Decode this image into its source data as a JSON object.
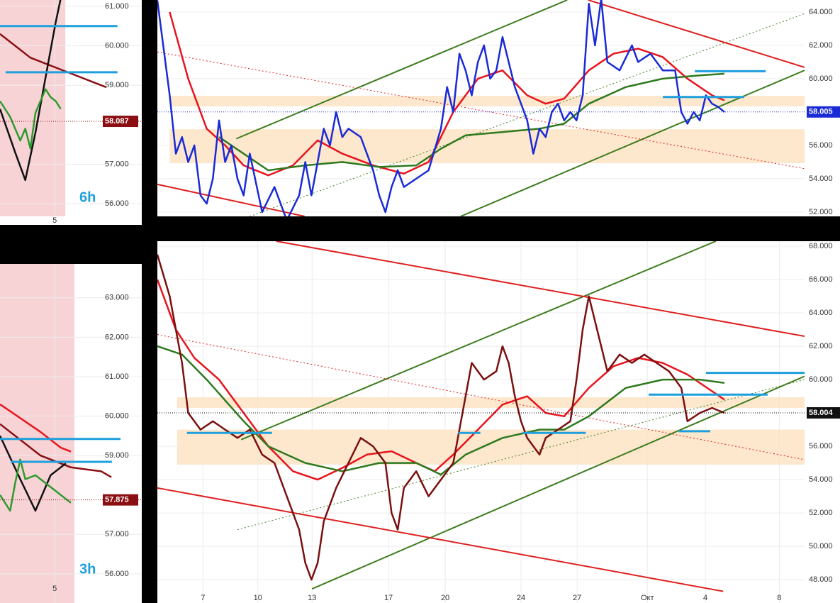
{
  "chart_data": [
    {
      "type": "line",
      "timeframe": "6h",
      "grid": true,
      "xlim": [
        0,
        28
      ],
      "xticks": [
        {
          "value": 10.8,
          "label": "5"
        }
      ],
      "ylim": [
        55.68,
        61.16
      ],
      "yticks": [
        {
          "value": 61,
          "label": "61.000"
        },
        {
          "value": 60,
          "label": "60.000"
        },
        {
          "value": 59,
          "label": "59.000"
        },
        {
          "value": 57,
          "label": "57.000"
        },
        {
          "value": 56,
          "label": "56.000"
        }
      ],
      "shade_x": [
        0,
        12.9
      ],
      "shade_color": "#f8d3d6",
      "series": [
        {
          "color": "#8b0f12",
          "x": [
            0,
            6,
            12,
            18,
            21
          ],
          "values": [
            60.3,
            59.7,
            59.4,
            59.1,
            58.95
          ]
        },
        {
          "color": "#111111",
          "x": [
            0,
            3,
            5,
            7,
            9,
            11,
            12
          ],
          "values": [
            58.4,
            57.3,
            56.6,
            57.8,
            59.2,
            60.6,
            61.2
          ]
        },
        {
          "color": "#2e9a2e",
          "x": [
            0,
            2,
            4,
            5,
            6,
            7,
            8,
            9,
            10,
            11,
            12
          ],
          "values": [
            58.6,
            58.2,
            57.6,
            57.9,
            57.4,
            58.3,
            58.6,
            58.9,
            58.7,
            58.6,
            58.4
          ]
        }
      ],
      "levels": [
        {
          "value": 60.5,
          "x": [
            0,
            23.2
          ]
        },
        {
          "value": 59.33,
          "x": [
            1.1,
            23.2
          ]
        }
      ],
      "level_color": "#1ea0dc",
      "last_price": {
        "value": 58.087,
        "label": "58.087"
      },
      "tag_color": "#8b0f12"
    },
    {
      "type": "line",
      "grid": true,
      "xlim": [
        0,
        105
      ],
      "xticks": [],
      "ylim": [
        51.74,
        64.72
      ],
      "yticks": [
        {
          "value": 64,
          "label": "64.000"
        },
        {
          "value": 62,
          "label": "62.000"
        },
        {
          "value": 60,
          "label": "60.000"
        },
        {
          "value": 56,
          "label": "56.000"
        },
        {
          "value": 54,
          "label": "54.000"
        },
        {
          "value": 52,
          "label": "52.000"
        }
      ],
      "zones": [
        [
          58.34,
          58.97
        ],
        [
          54.93,
          56.97
        ]
      ],
      "zone_x": [
        2,
        105
      ],
      "zone_color": "#fde3c4",
      "trend_lines": [
        {
          "color": "#3f7d20",
          "x": [
            12.8,
            66.5
          ],
          "values": [
            56.4,
            64.72
          ],
          "dash": false
        },
        {
          "color": "#3f7d20",
          "x": [
            49.2,
            105
          ],
          "values": [
            51.74,
            60.5
          ],
          "dash": false
        },
        {
          "color": "#e02020",
          "x": [
            69.9,
            105
          ],
          "values": [
            64.72,
            60.68
          ],
          "dash": false
        },
        {
          "color": "#e02020",
          "x": [
            0,
            23.9
          ],
          "values": [
            53.66,
            51.74
          ],
          "dash": false
        },
        {
          "color": "#e02020",
          "x": [
            0,
            105
          ],
          "values": [
            61.6,
            54.6
          ],
          "dash": true
        },
        {
          "color": "#3f7d20",
          "x": [
            15,
            105
          ],
          "values": [
            51.74,
            63.9
          ],
          "dash": true
        }
      ],
      "series": [
        {
          "color": "#e8141e",
          "x": [
            2,
            5,
            8,
            11,
            14,
            18,
            22,
            26,
            30,
            35,
            40,
            44,
            48,
            52,
            56,
            60,
            63,
            66,
            70,
            74,
            78,
            82,
            86,
            90,
            92
          ],
          "values": [
            64,
            60,
            57,
            56,
            54.8,
            54.2,
            54.8,
            56.3,
            55.5,
            54.8,
            54.3,
            55,
            58,
            60,
            60.5,
            59,
            58.5,
            58.8,
            60.5,
            61.5,
            61.8,
            61.3,
            60,
            59,
            58.7
          ]
        },
        {
          "color": "#2f7a1e",
          "x": [
            10,
            18,
            24,
            30,
            36,
            42,
            46,
            50,
            56,
            62,
            66,
            70,
            76,
            82,
            88,
            92
          ],
          "values": [
            56.5,
            54.5,
            54.8,
            55,
            54.7,
            54.8,
            55.8,
            56.6,
            56.8,
            57,
            57.3,
            58.5,
            59.5,
            60,
            60.2,
            60.3
          ]
        },
        {
          "color": "#1a2bd6",
          "x": [
            0,
            2,
            3,
            4,
            5,
            6,
            7,
            8,
            9,
            10,
            11,
            12,
            13,
            14,
            15,
            17,
            19,
            21,
            23,
            24,
            25,
            27,
            28,
            29,
            30,
            31,
            33,
            35,
            36,
            37,
            38,
            39,
            40,
            42,
            44,
            46,
            47,
            48,
            49,
            50,
            51,
            52,
            53,
            54,
            55,
            56,
            57,
            58,
            59,
            60,
            61,
            62,
            63,
            64,
            65,
            66,
            67,
            68,
            69,
            70,
            71,
            72,
            73,
            75,
            77,
            78,
            80,
            81,
            82,
            84,
            85,
            86,
            87,
            88,
            89,
            90,
            91,
            92
          ],
          "values": [
            64.7,
            59,
            55.5,
            56.5,
            55,
            56,
            53,
            52.5,
            54,
            57.5,
            55,
            56,
            54,
            53,
            55.5,
            52,
            53.5,
            51.5,
            53,
            55,
            53,
            57,
            56,
            58,
            56.5,
            57,
            56.5,
            54.5,
            53,
            52,
            53.5,
            54.5,
            53.5,
            54,
            54.5,
            57,
            59.5,
            58,
            61.5,
            60.5,
            59,
            61,
            62,
            60,
            60.5,
            62.5,
            61,
            59.5,
            58.5,
            57.5,
            55.5,
            57,
            56.5,
            58,
            58.5,
            57.5,
            58,
            57.5,
            59,
            64.5,
            62,
            64.8,
            61,
            60.5,
            62,
            61,
            61.5,
            61,
            60.5,
            60.5,
            58,
            57.3,
            58,
            57.5,
            59,
            58.5,
            58.3,
            58
          ]
        }
      ],
      "levels": [
        {
          "value": 60.45,
          "x": [
            87.2,
            98.7
          ]
        },
        {
          "value": 58.9,
          "x": [
            82,
            95.2
          ]
        }
      ],
      "level_color": "#1ea0dc",
      "last_price": {
        "value": 58.005,
        "label": "58.005"
      },
      "tag_color": "#1a2bd6"
    },
    {
      "type": "line",
      "timeframe": "3h",
      "grid": true,
      "xlim": [
        0,
        28
      ],
      "xticks": [
        {
          "value": 10.8,
          "label": "5"
        }
      ],
      "ylim": [
        55.26,
        63.86
      ],
      "yticks": [
        {
          "value": 63,
          "label": "63.000"
        },
        {
          "value": 62,
          "label": "62.000"
        },
        {
          "value": 61,
          "label": "61.000"
        },
        {
          "value": 60,
          "label": "60.000"
        },
        {
          "value": 59,
          "label": "59.000"
        },
        {
          "value": 57,
          "label": "57.000"
        },
        {
          "value": 56,
          "label": "56.000"
        }
      ],
      "shade_x": [
        0,
        14.7
      ],
      "shade_color": "#f8d3d6",
      "series": [
        {
          "color": "#8b0f12",
          "x": [
            0,
            8,
            14,
            20,
            22
          ],
          "values": [
            59.8,
            59,
            58.7,
            58.6,
            58.45
          ]
        },
        {
          "color": "#e8141e",
          "x": [
            0,
            8,
            12,
            14
          ],
          "values": [
            60.3,
            59.6,
            59.2,
            59.1
          ]
        },
        {
          "color": "#111111",
          "x": [
            0,
            4,
            7,
            10,
            13
          ],
          "values": [
            59.5,
            58.4,
            57.6,
            58.5,
            58.8
          ]
        },
        {
          "color": "#2e9a2e",
          "x": [
            0,
            2,
            3,
            4,
            5,
            7,
            9,
            11,
            13,
            14
          ],
          "values": [
            58,
            57.6,
            58.3,
            58.9,
            58.4,
            58.5,
            58.3,
            58.1,
            57.9,
            57.8
          ]
        }
      ],
      "levels": [
        {
          "value": 59.42,
          "x": [
            0,
            23.8
          ]
        },
        {
          "value": 58.84,
          "x": [
            2.1,
            22.1
          ]
        }
      ],
      "level_color": "#1ea0dc",
      "last_price": {
        "value": 57.875,
        "label": "57.875"
      },
      "tag_color": "#8b0f12"
    },
    {
      "type": "line",
      "grid": true,
      "xlim": [
        0,
        105
      ],
      "xticks": [
        {
          "value": 7.4,
          "label": "7"
        },
        {
          "value": 16.3,
          "label": "10"
        },
        {
          "value": 25.1,
          "label": "13"
        },
        {
          "value": 37.5,
          "label": "17"
        },
        {
          "value": 46.7,
          "label": "20"
        },
        {
          "value": 59,
          "label": "24"
        },
        {
          "value": 68.1,
          "label": "27"
        },
        {
          "value": 79.5,
          "label": "Окт"
        },
        {
          "value": 88.9,
          "label": "4"
        },
        {
          "value": 100.9,
          "label": "8"
        }
      ],
      "ylim": [
        46.6,
        68.3
      ],
      "yticks": [
        {
          "value": 68,
          "label": "68.000"
        },
        {
          "value": 66,
          "label": "66.000"
        },
        {
          "value": 64,
          "label": "64.000"
        },
        {
          "value": 62,
          "label": "62.000"
        },
        {
          "value": 60,
          "label": "60.000"
        },
        {
          "value": 56,
          "label": "56.000"
        },
        {
          "value": 54,
          "label": "54.000"
        },
        {
          "value": 52,
          "label": "52.000"
        },
        {
          "value": 50,
          "label": "50.000"
        },
        {
          "value": 48,
          "label": "48.000"
        }
      ],
      "zones": [
        [
          58.3,
          58.94
        ],
        [
          54.9,
          57
        ]
      ],
      "zone_x": [
        3.2,
        105
      ],
      "zone_color": "#fde3c4",
      "trend_lines": [
        {
          "color": "#3f7d20",
          "x": [
            25.1,
            105
          ],
          "values": [
            47.45,
            60.2
          ],
          "dash": false
        },
        {
          "color": "#3f7d20",
          "x": [
            13.6,
            90.6
          ],
          "values": [
            56.4,
            68.3
          ],
          "dash": false
        },
        {
          "color": "#e02020",
          "x": [
            19.3,
            105
          ],
          "values": [
            68.3,
            62.6
          ],
          "dash": false
        },
        {
          "color": "#e02020",
          "x": [
            0,
            91.8
          ],
          "values": [
            53.5,
            47.3
          ],
          "dash": false
        },
        {
          "color": "#e02020",
          "x": [
            0,
            105
          ],
          "values": [
            62.7,
            55.2
          ],
          "dash": true
        },
        {
          "color": "#3f7d20",
          "x": [
            13,
            105
          ],
          "values": [
            51,
            60
          ],
          "dash": true
        }
      ],
      "series": [
        {
          "color": "#e8141e",
          "x": [
            0,
            3,
            6,
            10,
            14,
            18,
            22,
            26,
            30,
            34,
            38,
            42,
            45,
            48,
            52,
            56,
            60,
            63,
            66,
            70,
            74,
            78,
            82,
            86,
            90,
            92
          ],
          "values": [
            66,
            63,
            61.3,
            60,
            58,
            56,
            54.5,
            54,
            54.7,
            55.5,
            55.7,
            55,
            54.5,
            55.5,
            57,
            58.5,
            59,
            58,
            57.8,
            59.5,
            60.8,
            61.3,
            61,
            60.3,
            59.3,
            58.8
          ]
        },
        {
          "color": "#2f7a1e",
          "x": [
            0,
            4,
            8,
            14,
            18,
            24,
            30,
            36,
            42,
            46,
            50,
            56,
            62,
            66,
            70,
            76,
            82,
            88,
            92
          ],
          "values": [
            62,
            61.5,
            60,
            57.5,
            56,
            55,
            54.5,
            55,
            55,
            54.3,
            55.5,
            56.5,
            57,
            57,
            57.8,
            59.5,
            60,
            60,
            59.8
          ]
        },
        {
          "color": "#7a1010",
          "x": [
            0,
            2,
            4,
            5,
            7,
            9,
            11,
            13,
            15,
            17,
            19,
            21,
            23,
            24,
            25,
            26,
            27,
            29,
            31,
            33,
            35,
            37,
            38,
            39,
            40,
            42,
            44,
            46,
            48,
            49,
            50,
            51,
            53,
            55,
            56,
            57,
            58,
            59,
            60,
            62,
            63,
            65,
            67,
            68,
            69,
            70,
            71,
            72,
            73,
            75,
            77,
            79,
            81,
            83,
            85,
            86,
            88,
            90,
            92
          ],
          "values": [
            67.5,
            65,
            61,
            58,
            57,
            57.5,
            57,
            56.5,
            57,
            55.5,
            55,
            53,
            51,
            49,
            48,
            49,
            51.5,
            53.5,
            55,
            56.5,
            56,
            55,
            52,
            51,
            53.5,
            54.5,
            53,
            54,
            55,
            57,
            59,
            61,
            60,
            60.5,
            62,
            61,
            59,
            57.5,
            56.5,
            55.5,
            56.5,
            57,
            57.5,
            60,
            63,
            65,
            63.5,
            62,
            60.5,
            61.5,
            61,
            61.5,
            61,
            60.5,
            59.5,
            57.5,
            58,
            58.3,
            58
          ]
        }
      ],
      "levels": [
        {
          "value": 60.4,
          "x": [
            89,
            105
          ]
        },
        {
          "value": 59.1,
          "x": [
            79.7,
            99
          ]
        },
        {
          "value": 56.8,
          "x": [
            4.8,
            18.6
          ]
        },
        {
          "value": 56.8,
          "x": [
            48.8,
            52.4
          ]
        },
        {
          "value": 56.8,
          "x": [
            59.2,
            69.5
          ]
        },
        {
          "value": 56.9,
          "x": [
            84.6,
            89.7
          ]
        }
      ],
      "level_color": "#1ea0dc",
      "last_price": {
        "value": 58.004,
        "label": "58.004"
      },
      "tag_color": "#111111"
    }
  ]
}
